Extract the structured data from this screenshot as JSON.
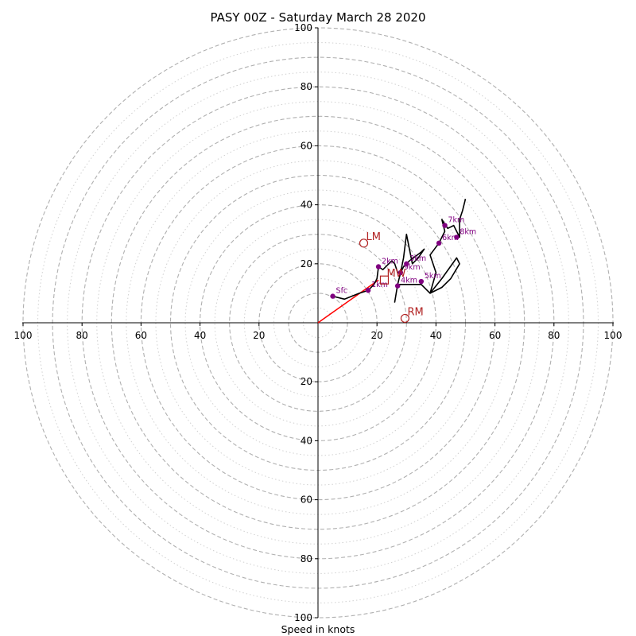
{
  "chart_data": {
    "type": "hodograph",
    "title": "PASY 00Z - Saturday March 28 2020",
    "xlabel": "Speed in knots",
    "range": [
      -100,
      100
    ],
    "ring_labels": [
      "20",
      "40",
      "60",
      "80",
      "100"
    ],
    "major_ring_speeds": [
      10,
      20,
      30,
      40,
      50,
      60,
      70,
      80,
      90,
      100
    ],
    "minor_ring_speeds": [
      5,
      15,
      25,
      35,
      45,
      55,
      65,
      75,
      85,
      95
    ],
    "axis_tick_values": [
      20,
      40,
      60,
      80,
      100
    ],
    "colors": {
      "trace": "#000000",
      "height_markers": "#800080",
      "storm_motion": "#b22222",
      "mean_wind_vector": "#ff0000",
      "grid": "#b0b0b0",
      "axes": "#000000"
    },
    "trace": [
      [
        5,
        9
      ],
      [
        9,
        8
      ],
      [
        14,
        10
      ],
      [
        17,
        11
      ],
      [
        19,
        13
      ],
      [
        20,
        15
      ],
      [
        20.5,
        19
      ],
      [
        22,
        18
      ],
      [
        25,
        21
      ],
      [
        26,
        20
      ],
      [
        27,
        17
      ],
      [
        28,
        17
      ],
      [
        29,
        19
      ],
      [
        31,
        21
      ],
      [
        35,
        24
      ],
      [
        36,
        25
      ],
      [
        34,
        22
      ],
      [
        32,
        20
      ],
      [
        30,
        30
      ],
      [
        29,
        22
      ],
      [
        28,
        17
      ],
      [
        27,
        13
      ],
      [
        26,
        7
      ],
      [
        27,
        13
      ],
      [
        35,
        13
      ],
      [
        38,
        10
      ],
      [
        42,
        15
      ],
      [
        47,
        22
      ],
      [
        48,
        20
      ],
      [
        45,
        15
      ],
      [
        42,
        12
      ],
      [
        38,
        10
      ],
      [
        40,
        17
      ],
      [
        38,
        23
      ],
      [
        41,
        27
      ],
      [
        43,
        31
      ],
      [
        42,
        35
      ],
      [
        44,
        32
      ],
      [
        46,
        33
      ],
      [
        48,
        29
      ],
      [
        48,
        35
      ],
      [
        49,
        38
      ],
      [
        50,
        42
      ]
    ],
    "height_markers": [
      {
        "label": "Sfc",
        "u": 5,
        "v": 9
      },
      {
        "label": "1km",
        "u": 17,
        "v": 11
      },
      {
        "label": "2km",
        "u": 20.5,
        "v": 19
      },
      {
        "label": "3km",
        "u": 30,
        "v": 20
      },
      {
        "label": "4km",
        "u": 27,
        "v": 12.5
      },
      {
        "label": "5km",
        "u": 35,
        "v": 14
      },
      {
        "label": "6km",
        "u": 41,
        "v": 27
      },
      {
        "label": "7km",
        "u": 43,
        "v": 33
      },
      {
        "label": "8km",
        "u": 47,
        "v": 29
      },
      {
        "label": "9km",
        "u": 28,
        "v": 17
      }
    ],
    "storm_motions": [
      {
        "label": "LM",
        "u": 15.5,
        "v": 27,
        "marker": "circle"
      },
      {
        "label": "RM",
        "u": 29.5,
        "v": 1.5,
        "marker": "circle"
      },
      {
        "label": "MW",
        "u": 22.5,
        "v": 14.5,
        "marker": "square"
      }
    ],
    "mean_wind_vector": {
      "from": [
        0,
        0
      ],
      "to": [
        20.5,
        14.5
      ]
    }
  }
}
